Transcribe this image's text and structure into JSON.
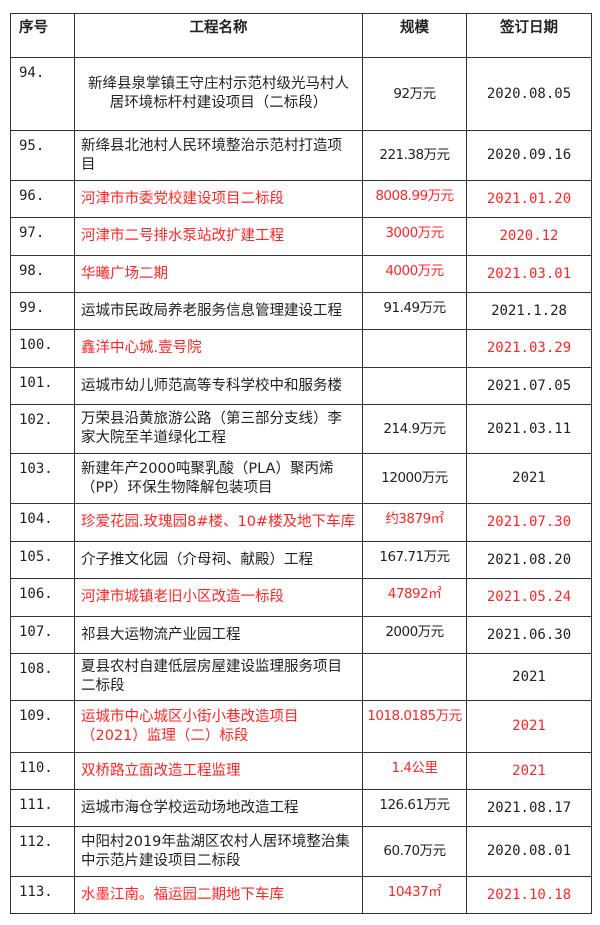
{
  "headers": {
    "seq": "序号",
    "name": "工程名称",
    "scale": "规模",
    "date": "签订日期"
  },
  "highlight_color": "#ff2525",
  "rows": [
    {
      "seq": "94.",
      "name": "新绛县泉掌镇王守庄村示范村级光马村人居环境标杆村建设项目（二标段）",
      "scale": "92万元",
      "date": "2020.08.05",
      "red": false
    },
    {
      "seq": "95.",
      "name": "新绛县北池村人民环境整治示范村打造项目",
      "scale": "221.38万元",
      "date": "2020.09.16",
      "red": false
    },
    {
      "seq": "96.",
      "name": "河津市市委党校建设项目二标段",
      "scale": "8008.99万元",
      "date": "2021.01.20",
      "red": true
    },
    {
      "seq": "97.",
      "name": "河津市二号排水泵站改扩建工程",
      "scale": "3000万元",
      "date": "2020.12",
      "red": true
    },
    {
      "seq": "98.",
      "name": "华曦广场二期",
      "scale": "4000万元",
      "date": "2021.03.01",
      "red": true
    },
    {
      "seq": "99.",
      "name": "运城市民政局养老服务信息管理建设工程",
      "scale": "91.49万元",
      "date": "2021.1.28",
      "red": false
    },
    {
      "seq": "100.",
      "name": "鑫洋中心城.壹号院",
      "scale": "",
      "date": "2021.03.29",
      "red": true
    },
    {
      "seq": "101.",
      "name": "运城市幼儿师范高等专科学校中和服务楼",
      "scale": "",
      "date": "2021.07.05",
      "red": false
    },
    {
      "seq": "102.",
      "name": "万荣县沿黄旅游公路（第三部分支线）李家大院至羊道绿化工程",
      "scale": "214.9万元",
      "date": "2021.03.11",
      "red": false
    },
    {
      "seq": "103.",
      "name": "新建年产2000吨聚乳酸（PLA）聚丙烯（PP）环保生物降解包装项目",
      "scale": "12000万元",
      "date": "2021",
      "red": false
    },
    {
      "seq": "104.",
      "name": "珍爱花园.玫瑰园8#楼、10#楼及地下车库",
      "scale": "约3879㎡",
      "date": "2021.07.30",
      "red": true
    },
    {
      "seq": "105.",
      "name": "介子推文化园（介母祠、献殿）工程",
      "scale": "167.71万元",
      "date": "2021.08.20",
      "red": false
    },
    {
      "seq": "106.",
      "name": "河津市城镇老旧小区改造一标段",
      "scale": "47892㎡",
      "date": "2021.05.24",
      "red": true
    },
    {
      "seq": "107.",
      "name": "祁县大运物流产业园工程",
      "scale": "2000万元",
      "date": "2021.06.30",
      "red": false
    },
    {
      "seq": "108.",
      "name": "夏县农村自建低层房屋建设监理服务项目二标段",
      "scale": "",
      "date": "2021",
      "red": false
    },
    {
      "seq": "109.",
      "name": "运城市中心城区小街小巷改造项目（2021）监理（二）标段",
      "scale": "1018.0185万元",
      "date": "2021",
      "red": true
    },
    {
      "seq": "110.",
      "name": "双桥路立面改造工程监理",
      "scale": "1.4公里",
      "date": "2021",
      "red": true
    },
    {
      "seq": "111.",
      "name": "运城市海仓学校运动场地改造工程",
      "scale": "126.61万元",
      "date": "2021.08.17",
      "red": false
    },
    {
      "seq": "112.",
      "name": "中阳村2019年盐湖区农村人居环境整治集中示范片建设项目二标段",
      "scale": "60.70万元",
      "date": "2020.08.01",
      "red": false
    },
    {
      "seq": "113.",
      "name": "水墨江南。福运园二期地下车库",
      "scale": "10437㎡",
      "date": "2021.10.18",
      "red": true
    }
  ]
}
